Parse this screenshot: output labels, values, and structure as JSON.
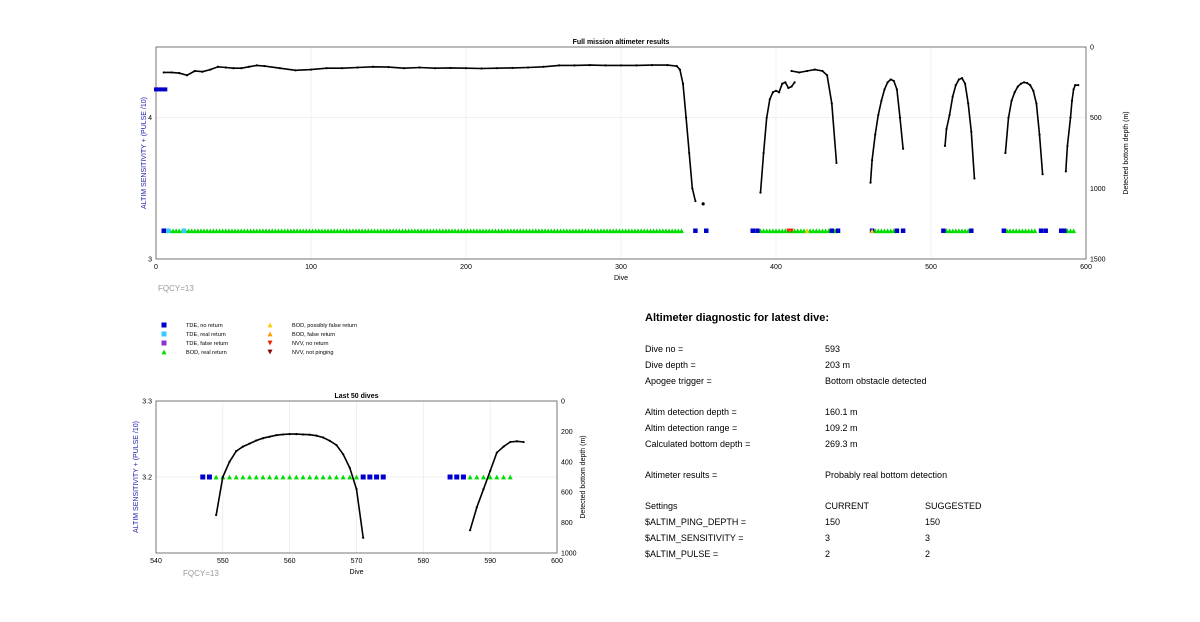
{
  "chart_data": [
    {
      "type": "scatter",
      "title": "Full mission altimeter results",
      "xlabel": "Dive",
      "ylabel": "ALTIM SENSITIVITY + (PULSE /10)",
      "y2label": "Detected bottom depth (m)",
      "xlim": [
        0,
        600
      ],
      "ylim": [
        3,
        4.5
      ],
      "y2lim": [
        0,
        1500
      ],
      "y2_inverted": true,
      "xticks": [
        "0",
        "100",
        "200",
        "300",
        "400",
        "500",
        "600"
      ],
      "yticks": [
        "3",
        "4"
      ],
      "y2ticks": [
        "0",
        "500",
        "1000",
        "1500"
      ],
      "grid": true,
      "annotation": "FQCY=13",
      "sensitivity_series": [
        {
          "name": "TDE, no return",
          "color": "#0000cc",
          "marker": "square",
          "x_from": 0,
          "x_to": 6,
          "y": 4.2
        }
      ],
      "depth_line_anchors": [
        {
          "segment": 1,
          "points": [
            [
              5,
              180
            ],
            [
              10,
              180
            ],
            [
              15,
              185
            ],
            [
              20,
              200
            ],
            [
              25,
              170
            ],
            [
              30,
              175
            ],
            [
              35,
              160
            ],
            [
              40,
              140
            ],
            [
              45,
              145
            ],
            [
              50,
              150
            ],
            [
              55,
              150
            ],
            [
              60,
              140
            ],
            [
              65,
              130
            ],
            [
              70,
              135
            ],
            [
              80,
              150
            ],
            [
              90,
              165
            ],
            [
              100,
              160
            ],
            [
              110,
              150
            ],
            [
              120,
              150
            ],
            [
              130,
              145
            ],
            [
              140,
              140
            ],
            [
              150,
              142
            ],
            [
              160,
              150
            ],
            [
              170,
              145
            ],
            [
              180,
              150
            ],
            [
              190,
              148
            ],
            [
              200,
              150
            ],
            [
              210,
              152
            ],
            [
              220,
              150
            ],
            [
              230,
              148
            ],
            [
              240,
              145
            ],
            [
              250,
              140
            ],
            [
              260,
              130
            ],
            [
              270,
              130
            ],
            [
              280,
              128
            ],
            [
              290,
              130
            ],
            [
              300,
              130
            ],
            [
              310,
              130
            ],
            [
              320,
              128
            ],
            [
              330,
              128
            ],
            [
              336,
              135
            ],
            [
              338,
              160
            ],
            [
              340,
              260
            ],
            [
              342,
              500
            ],
            [
              344,
              750
            ],
            [
              346,
              1000
            ],
            [
              348,
              1090
            ]
          ]
        },
        {
          "segment": 2,
          "points": [
            [
              390,
              1030
            ],
            [
              392,
              750
            ],
            [
              394,
              500
            ],
            [
              396,
              370
            ],
            [
              398,
              320
            ],
            [
              400,
              310
            ],
            [
              402,
              320
            ],
            [
              404,
              260
            ],
            [
              406,
              250
            ],
            [
              408,
              290
            ],
            [
              410,
              280
            ],
            [
              412,
              250
            ]
          ]
        },
        {
          "segment": 3,
          "points": [
            [
              410,
              170
            ],
            [
              415,
              180
            ],
            [
              420,
              170
            ],
            [
              425,
              160
            ],
            [
              430,
              170
            ],
            [
              433,
              200
            ],
            [
              436,
              400
            ],
            [
              439,
              820
            ]
          ]
        },
        {
          "segment": 4,
          "points": [
            [
              461,
              960
            ],
            [
              462,
              800
            ],
            [
              464,
              620
            ],
            [
              466,
              480
            ],
            [
              468,
              380
            ],
            [
              470,
              300
            ],
            [
              472,
              250
            ],
            [
              474,
              230
            ],
            [
              476,
              240
            ],
            [
              478,
              300
            ],
            [
              480,
              500
            ],
            [
              482,
              720
            ]
          ]
        },
        {
          "segment": 5,
          "points": [
            [
              509,
              700
            ],
            [
              510,
              580
            ],
            [
              512,
              480
            ],
            [
              514,
              350
            ],
            [
              516,
              270
            ],
            [
              518,
              230
            ],
            [
              520,
              220
            ],
            [
              522,
              260
            ],
            [
              524,
              400
            ],
            [
              526,
              600
            ],
            [
              528,
              930
            ]
          ]
        },
        {
          "segment": 6,
          "points": [
            [
              548,
              750
            ],
            [
              550,
              500
            ],
            [
              552,
              380
            ],
            [
              554,
              320
            ],
            [
              556,
              280
            ],
            [
              558,
              260
            ],
            [
              560,
              250
            ],
            [
              562,
              255
            ],
            [
              564,
              270
            ],
            [
              566,
              310
            ],
            [
              568,
              400
            ],
            [
              570,
              620
            ],
            [
              572,
              900
            ]
          ]
        },
        {
          "segment": 7,
          "points": [
            [
              587,
              880
            ],
            [
              588,
              700
            ],
            [
              590,
              500
            ],
            [
              591,
              380
            ],
            [
              592,
              300
            ],
            [
              593,
              270
            ],
            [
              595,
              270
            ]
          ]
        }
      ],
      "depth_isolated_points": [
        [
          353,
          1110
        ]
      ],
      "bottom_markers": [
        {
          "name": "BOD, real return",
          "color": "#00dd00",
          "marker": "triangle-up",
          "y": 3.2,
          "ranges": [
            [
              5,
              340
            ],
            [
              390,
              440
            ],
            [
              462,
              478
            ],
            [
              510,
              525
            ],
            [
              549,
              568
            ],
            [
              586,
              593
            ]
          ]
        },
        {
          "name": "TDE, no return",
          "color": "#0000cc",
          "marker": "square",
          "y": 3.2,
          "points": [
            5,
            348,
            355,
            385,
            388,
            436,
            440,
            462,
            478,
            482,
            508,
            526,
            547,
            571,
            574,
            584,
            586
          ]
        },
        {
          "name": "TDE, real return",
          "color": "#33ccff",
          "marker": "square",
          "y": 3.2,
          "points": [
            8,
            18
          ]
        },
        {
          "name": "NVV, no return",
          "color": "#ee2200",
          "marker": "triangle-down",
          "y": 3.2,
          "points": [
            408,
            410
          ]
        },
        {
          "name": "BOD, possibly false return",
          "color": "#ffcc00",
          "marker": "triangle-up",
          "y": 3.2,
          "points": [
            420,
            462
          ]
        }
      ]
    },
    {
      "type": "scatter",
      "title": "Last 50 dives",
      "xlabel": "Dive",
      "ylabel": "ALTIM SENSITIVITY + (PULSE /10)",
      "y2label": "Detected bottom depth (m)",
      "xlim": [
        540,
        600
      ],
      "ylim": [
        3.1,
        3.3
      ],
      "y2lim": [
        0,
        1000
      ],
      "y2_inverted": true,
      "xticks": [
        "540",
        "550",
        "560",
        "570",
        "580",
        "590",
        "600"
      ],
      "yticks": [
        "3.2",
        "3.3"
      ],
      "y2ticks": [
        "0",
        "200",
        "400",
        "600",
        "800",
        "1000"
      ],
      "grid": true,
      "annotation": "FQCY=13",
      "depth_series": [
        {
          "points": [
            [
              549,
              750
            ],
            [
              550,
              500
            ],
            [
              551,
              400
            ],
            [
              552,
              330
            ],
            [
              553,
              300
            ],
            [
              554,
              280
            ],
            [
              555,
              260
            ],
            [
              556,
              245
            ],
            [
              557,
              235
            ],
            [
              558,
              225
            ],
            [
              559,
              220
            ],
            [
              560,
              218
            ],
            [
              561,
              218
            ],
            [
              562,
              220
            ],
            [
              563,
              222
            ],
            [
              564,
              228
            ],
            [
              565,
              240
            ],
            [
              566,
              262
            ],
            [
              567,
              290
            ],
            [
              568,
              350
            ],
            [
              569,
              440
            ],
            [
              570,
              580
            ],
            [
              571,
              900
            ]
          ]
        },
        {
          "points": [
            [
              587,
              850
            ],
            [
              588,
              700
            ],
            [
              589,
              580
            ],
            [
              590,
              460
            ],
            [
              591,
              340
            ],
            [
              592,
              300
            ],
            [
              593,
              270
            ],
            [
              594,
              265
            ],
            [
              595,
              270
            ]
          ]
        }
      ],
      "marker_series": [
        {
          "name": "TDE, no return",
          "color": "#0000cc",
          "marker": "square",
          "y": 3.2,
          "points": [
            547,
            548,
            571,
            572,
            573,
            574,
            584,
            585,
            586
          ]
        },
        {
          "name": "BOD, real return",
          "color": "#00dd00",
          "marker": "triangle-up",
          "y": 3.2,
          "points": [
            549,
            550,
            551,
            552,
            553,
            554,
            555,
            556,
            557,
            558,
            559,
            560,
            561,
            562,
            563,
            564,
            565,
            566,
            567,
            568,
            569,
            570,
            587,
            588,
            589,
            590,
            591,
            592,
            593
          ]
        }
      ]
    }
  ],
  "legend": {
    "items": [
      {
        "label": "TDE, no return",
        "color": "#0000cc",
        "marker": "square"
      },
      {
        "label": "TDE, real return",
        "color": "#33ccff",
        "marker": "square"
      },
      {
        "label": "TDE, false return",
        "color": "#8833cc",
        "marker": "square"
      },
      {
        "label": "BOD, real return",
        "color": "#00dd00",
        "marker": "triangle-up"
      },
      {
        "label": "BOD, possibly false return",
        "color": "#ffcc00",
        "marker": "triangle-up"
      },
      {
        "label": "BOD, false return",
        "color": "#ff9900",
        "marker": "triangle-up"
      },
      {
        "label": "NVV, no return",
        "color": "#ee2200",
        "marker": "triangle-down"
      },
      {
        "label": "NVV, not pinging",
        "color": "#880000",
        "marker": "triangle-down"
      }
    ]
  },
  "diagnostic": {
    "title": "Altimeter diagnostic for latest dive:",
    "dive_no_label": "Dive no =",
    "dive_no": "593",
    "dive_depth_label": "Dive depth =",
    "dive_depth": "203 m",
    "apogee_label": "Apogee trigger =",
    "apogee": "Bottom obstacle detected",
    "detect_depth_label": "Altim detection depth =",
    "detect_depth": "160.1 m",
    "detect_range_label": "Altim detection range =",
    "detect_range": "109.2 m",
    "calc_bottom_label": "Calculated bottom depth =",
    "calc_bottom": "269.3 m",
    "results_label": "Altimeter results =",
    "results": "Probably real bottom detection",
    "settings_label": "Settings",
    "current_label": "CURRENT",
    "suggested_label": "SUGGESTED",
    "settings": [
      {
        "name": "$ALTIM_PING_DEPTH =",
        "current": "150",
        "suggested": "150"
      },
      {
        "name": "$ALTIM_SENSITIVITY =",
        "current": "3",
        "suggested": "3"
      },
      {
        "name": "$ALTIM_PULSE =",
        "current": "2",
        "suggested": "2"
      }
    ],
    "colors": {
      "axis_label": "#2222aa",
      "annotation": "#999999"
    }
  }
}
